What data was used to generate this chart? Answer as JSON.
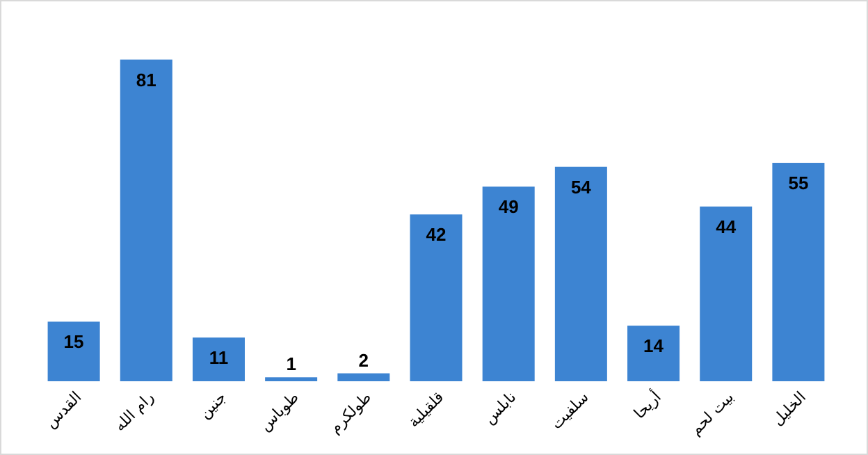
{
  "chart_data": {
    "type": "bar",
    "categories": [
      "القدس",
      "رام الله",
      "جنين",
      "طوباس",
      "طولكرم",
      "قلقيلية",
      "نابلس",
      "سلفيت",
      "أريحا",
      "بيت لحم",
      "الخليل"
    ],
    "values": [
      15,
      81,
      11,
      1,
      2,
      42,
      49,
      54,
      14,
      44,
      55
    ],
    "color": "#3d84d2",
    "data_labels": true
  }
}
